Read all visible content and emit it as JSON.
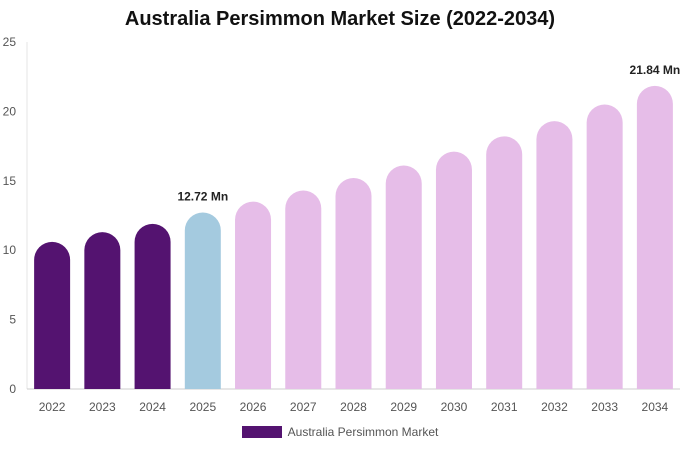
{
  "chart_data": {
    "type": "bar",
    "title": "Australia Persimmon Market Size (2022-2034)",
    "categories": [
      "2022",
      "2023",
      "2024",
      "2025",
      "2026",
      "2027",
      "2028",
      "2029",
      "2030",
      "2031",
      "2032",
      "2033",
      "2034"
    ],
    "series": [
      {
        "name": "Australia Persimmon Market",
        "values": [
          10.6,
          11.3,
          11.9,
          12.72,
          13.5,
          14.3,
          15.2,
          16.1,
          17.1,
          18.2,
          19.3,
          20.5,
          21.84
        ]
      }
    ],
    "bar_colors": [
      "#541370",
      "#541370",
      "#541370",
      "#a4cadf",
      "#e6bde8",
      "#e6bde8",
      "#e6bde8",
      "#e6bde8",
      "#e6bde8",
      "#e6bde8",
      "#e6bde8",
      "#e6bde8",
      "#e6bde8"
    ],
    "data_labels": [
      {
        "index": 3,
        "text": "12.72 Mn"
      },
      {
        "index": 12,
        "text": "21.84 Mn"
      }
    ],
    "yticks": [
      0,
      5,
      10,
      15,
      20,
      25
    ],
    "ylim": [
      0,
      25
    ],
    "xlabel": "",
    "ylabel": "",
    "grid": false,
    "legend_position": "bottom-center",
    "legend_color": "#541370"
  }
}
